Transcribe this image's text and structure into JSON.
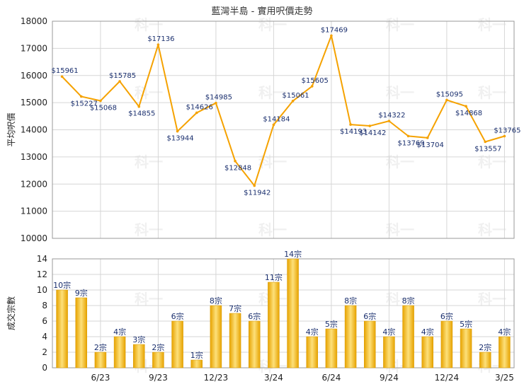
{
  "title": "藍灣半島 - 實用呎價走勢",
  "watermark": "科一",
  "colors": {
    "line": "#f5a200",
    "bar_light": "#fde07a",
    "bar_dark": "#e7a300",
    "grid": "#d6d6d6",
    "label": "#1a2f6e"
  },
  "chart_data": [
    {
      "type": "line",
      "ylabel": "平均呎價",
      "ylim": [
        10000,
        18000
      ],
      "yticks": [
        10000,
        11000,
        12000,
        13000,
        14000,
        15000,
        16000,
        17000,
        18000
      ],
      "grid": true,
      "series": [
        {
          "values": [
            15961,
            15227,
            15068,
            15785,
            14855,
            17136,
            13944,
            14626,
            14985,
            12848,
            11942,
            14184,
            15061,
            15605,
            17469,
            14193,
            14142,
            14322,
            13769,
            13704,
            15095,
            14868,
            13557,
            13765
          ],
          "labels": [
            "$15961",
            "$15227",
            "$15068",
            "$15785",
            "$14855",
            "$17136",
            "$13944",
            "$14626",
            "$14985",
            "$12848",
            "$11942",
            "$14184",
            "$15061",
            "$15605",
            "$17469",
            "$14193",
            "$14142",
            "$14322",
            "$13769",
            "$13704",
            "$15095",
            "$14868",
            "$13557",
            "$13765"
          ]
        }
      ]
    },
    {
      "type": "bar",
      "ylabel": "成交宗數",
      "ylim": [
        0,
        14
      ],
      "yticks": [
        0,
        2,
        4,
        6,
        8,
        10,
        12,
        14
      ],
      "grid": true,
      "values": [
        10,
        9,
        2,
        4,
        3,
        2,
        6,
        1,
        8,
        7,
        6,
        11,
        14,
        4,
        5,
        8,
        6,
        4,
        8,
        4,
        6,
        5,
        2,
        4
      ],
      "labels": [
        "10宗",
        "9宗",
        "2宗",
        "4宗",
        "3宗",
        "2宗",
        "6宗",
        "1宗",
        "8宗",
        "7宗",
        "6宗",
        "11宗",
        "14宗",
        "4宗",
        "5宗",
        "8宗",
        "6宗",
        "4宗",
        "8宗",
        "4宗",
        "6宗",
        "5宗",
        "2宗",
        "4宗"
      ],
      "x_ticks": [
        {
          "index": 2,
          "label": "6/23"
        },
        {
          "index": 5,
          "label": "9/23"
        },
        {
          "index": 8,
          "label": "12/23"
        },
        {
          "index": 11,
          "label": "3/24"
        },
        {
          "index": 14,
          "label": "6/24"
        },
        {
          "index": 17,
          "label": "9/24"
        },
        {
          "index": 20,
          "label": "12/24"
        },
        {
          "index": 23,
          "label": "3/25"
        }
      ]
    }
  ]
}
